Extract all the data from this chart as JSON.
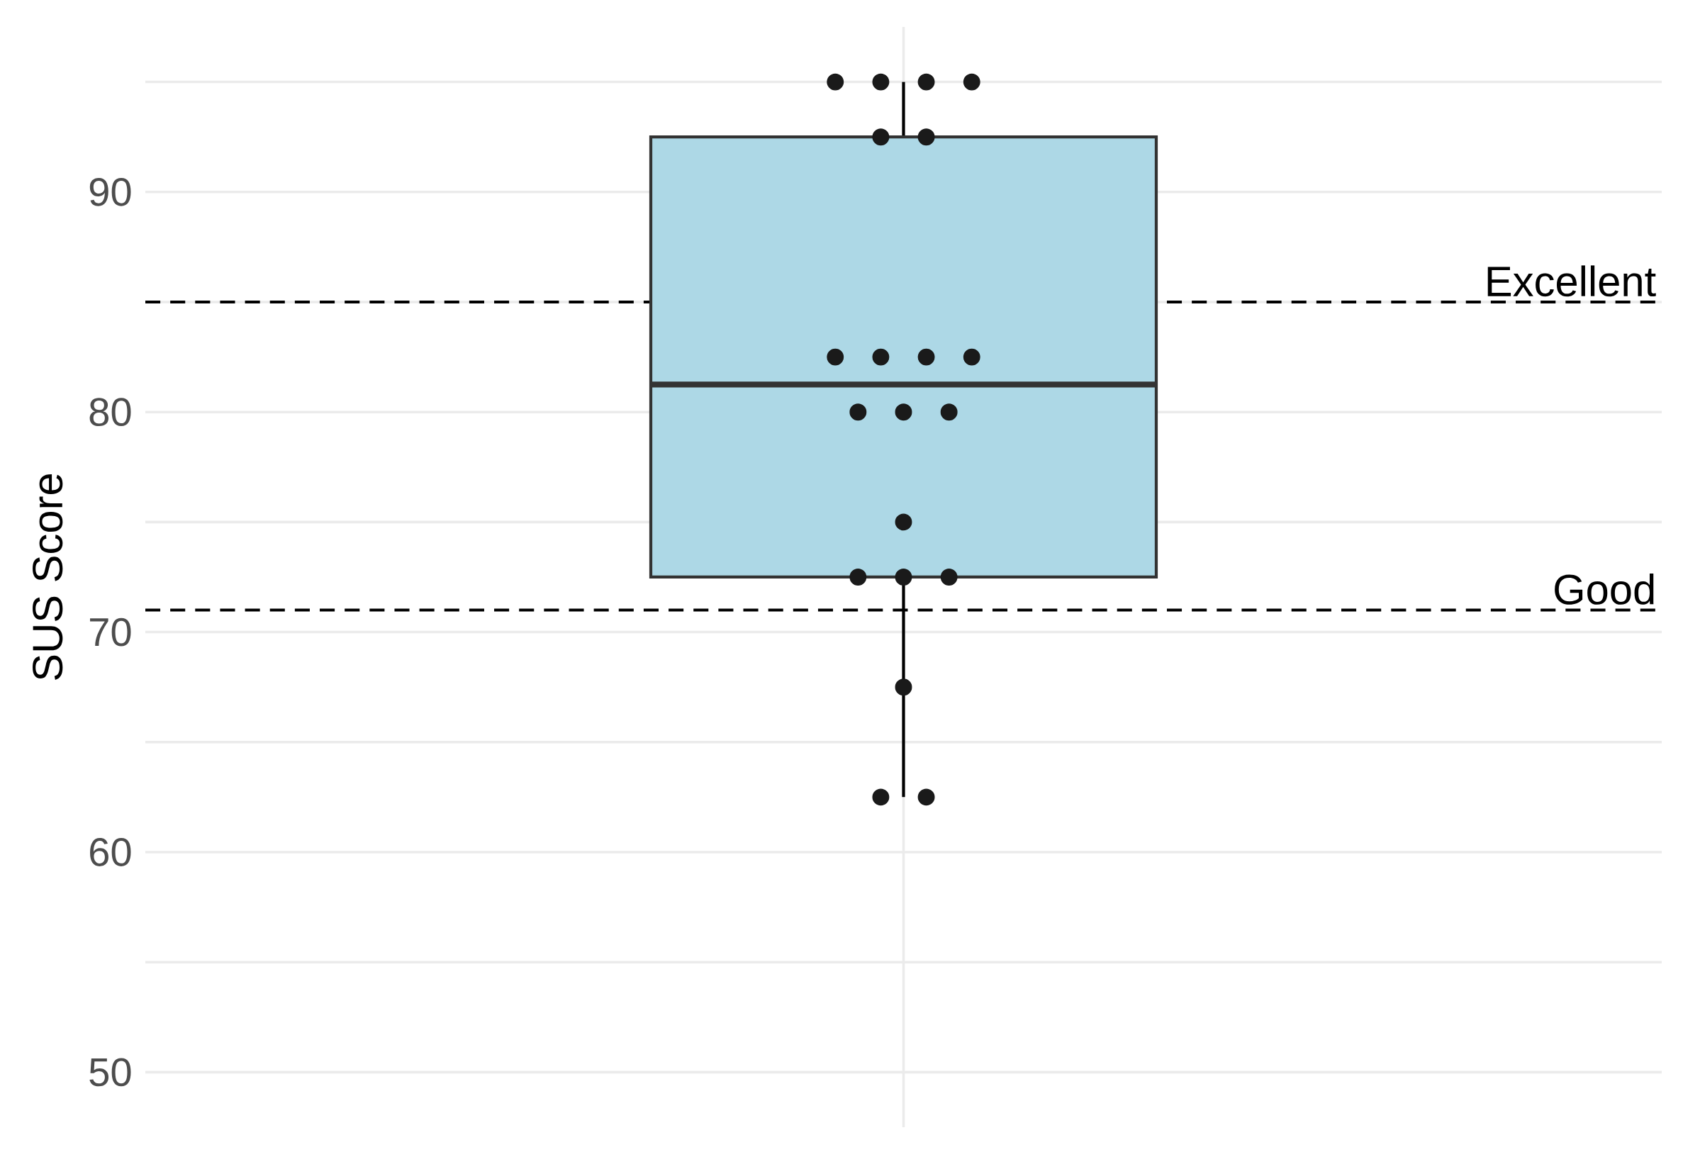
{
  "chart_data": {
    "type": "box",
    "ylabel": "SUS Score",
    "categories": [
      null
    ],
    "series": [
      {
        "color": "#add8e6",
        "boxes": [
          {
            "low": 62.5,
            "q1": 72.5,
            "median": 81.25,
            "q3": 92.5,
            "high": 95
          }
        ]
      },
      {
        "type": "scatter",
        "color": "#1a1a1a",
        "marker": "circle",
        "x": [
          null,
          null,
          null,
          null,
          null,
          null,
          null,
          null,
          null,
          null,
          null,
          null,
          null,
          null,
          null,
          null,
          null,
          null,
          null,
          null
        ],
        "values": [
          95,
          95,
          95,
          95,
          92.5,
          92.5,
          82.5,
          82.5,
          82.5,
          82.5,
          80,
          80,
          80,
          75,
          72.5,
          72.5,
          72.5,
          67.5,
          62.5,
          62.5
        ]
      }
    ],
    "ylim": [
      47.5,
      97.5
    ],
    "yticks": [
      50,
      {
        "value": 55,
        "label": null
      },
      60,
      {
        "value": 65,
        "label": null
      },
      70,
      {
        "value": 75,
        "label": null
      },
      80,
      {
        "value": 85,
        "label": null
      },
      90,
      {
        "value": 95,
        "label": null
      }
    ],
    "ref_lines": [
      {
        "axis": "y",
        "value": 85,
        "label": "Excellent",
        "line_style": "dashed"
      },
      {
        "axis": "y",
        "value": 71,
        "label": "Good",
        "line_style": "dashed"
      }
    ],
    "grid": true,
    "tick_labels": "y"
  }
}
